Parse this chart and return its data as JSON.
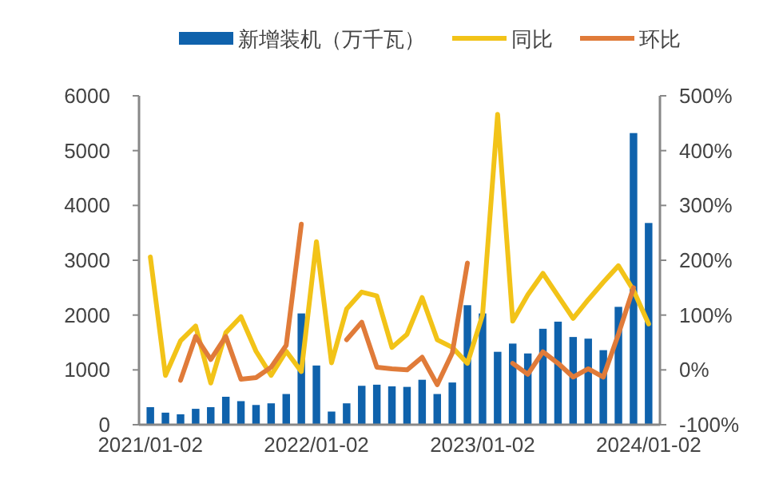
{
  "chart_data": {
    "type": "bar",
    "categories": [
      "2021/01-02",
      null,
      null,
      null,
      null,
      null,
      null,
      null,
      null,
      null,
      null,
      "2022/01-02",
      null,
      null,
      null,
      null,
      null,
      null,
      null,
      null,
      null,
      null,
      "2023/01-02",
      null,
      null,
      null,
      null,
      null,
      null,
      null,
      null,
      null,
      null,
      "2024/01-02"
    ],
    "series": [
      {
        "name": "新增装机（万千瓦）",
        "color": "#0f62ac",
        "values": [
          320,
          220,
          190,
          290,
          320,
          510,
          430,
          360,
          390,
          560,
          2030,
          1080,
          240,
          390,
          710,
          730,
          700,
          690,
          820,
          560,
          770,
          2180,
          2030,
          1330,
          1480,
          1300,
          1750,
          1880,
          1600,
          1570,
          1360,
          2150,
          5320,
          3680
        ]
      },
      {
        "name": "同比",
        "type": "line",
        "axis": "y2",
        "color": "#f2c318",
        "values": [
          206,
          -10,
          53,
          80,
          -24,
          68,
          97,
          34,
          -10,
          34,
          -3,
          234,
          13,
          111,
          142,
          135,
          41,
          65,
          132,
          55,
          41,
          12,
          100,
          466,
          89,
          137,
          176,
          135,
          94,
          128,
          160,
          190,
          145,
          84
        ]
      },
      {
        "name": "环比",
        "type": "line",
        "axis": "y2",
        "color": "#e07b39",
        "values": [
          null,
          null,
          -19,
          61,
          19,
          61,
          -17,
          -14,
          5,
          45,
          266,
          null,
          null,
          55,
          87,
          5,
          2,
          0,
          23,
          -27,
          31,
          195,
          null,
          null,
          12,
          -8,
          33,
          12,
          -13,
          2,
          -13,
          65,
          150,
          null
        ]
      }
    ],
    "ylim": [
      0,
      6000
    ],
    "yticks": [
      0,
      1000,
      2000,
      3000,
      4000,
      5000,
      6000
    ],
    "y2lim": [
      -100,
      500
    ],
    "y2ticks": [
      {
        "value": -100,
        "label": "-100%"
      },
      {
        "value": 0,
        "label": "0%"
      },
      {
        "value": 100,
        "label": "100%"
      },
      {
        "value": 200,
        "label": "200%"
      },
      {
        "value": 300,
        "label": "300%"
      },
      {
        "value": 400,
        "label": "400%"
      },
      {
        "value": 500,
        "label": "500%"
      }
    ],
    "grid": false,
    "legend": "top"
  }
}
